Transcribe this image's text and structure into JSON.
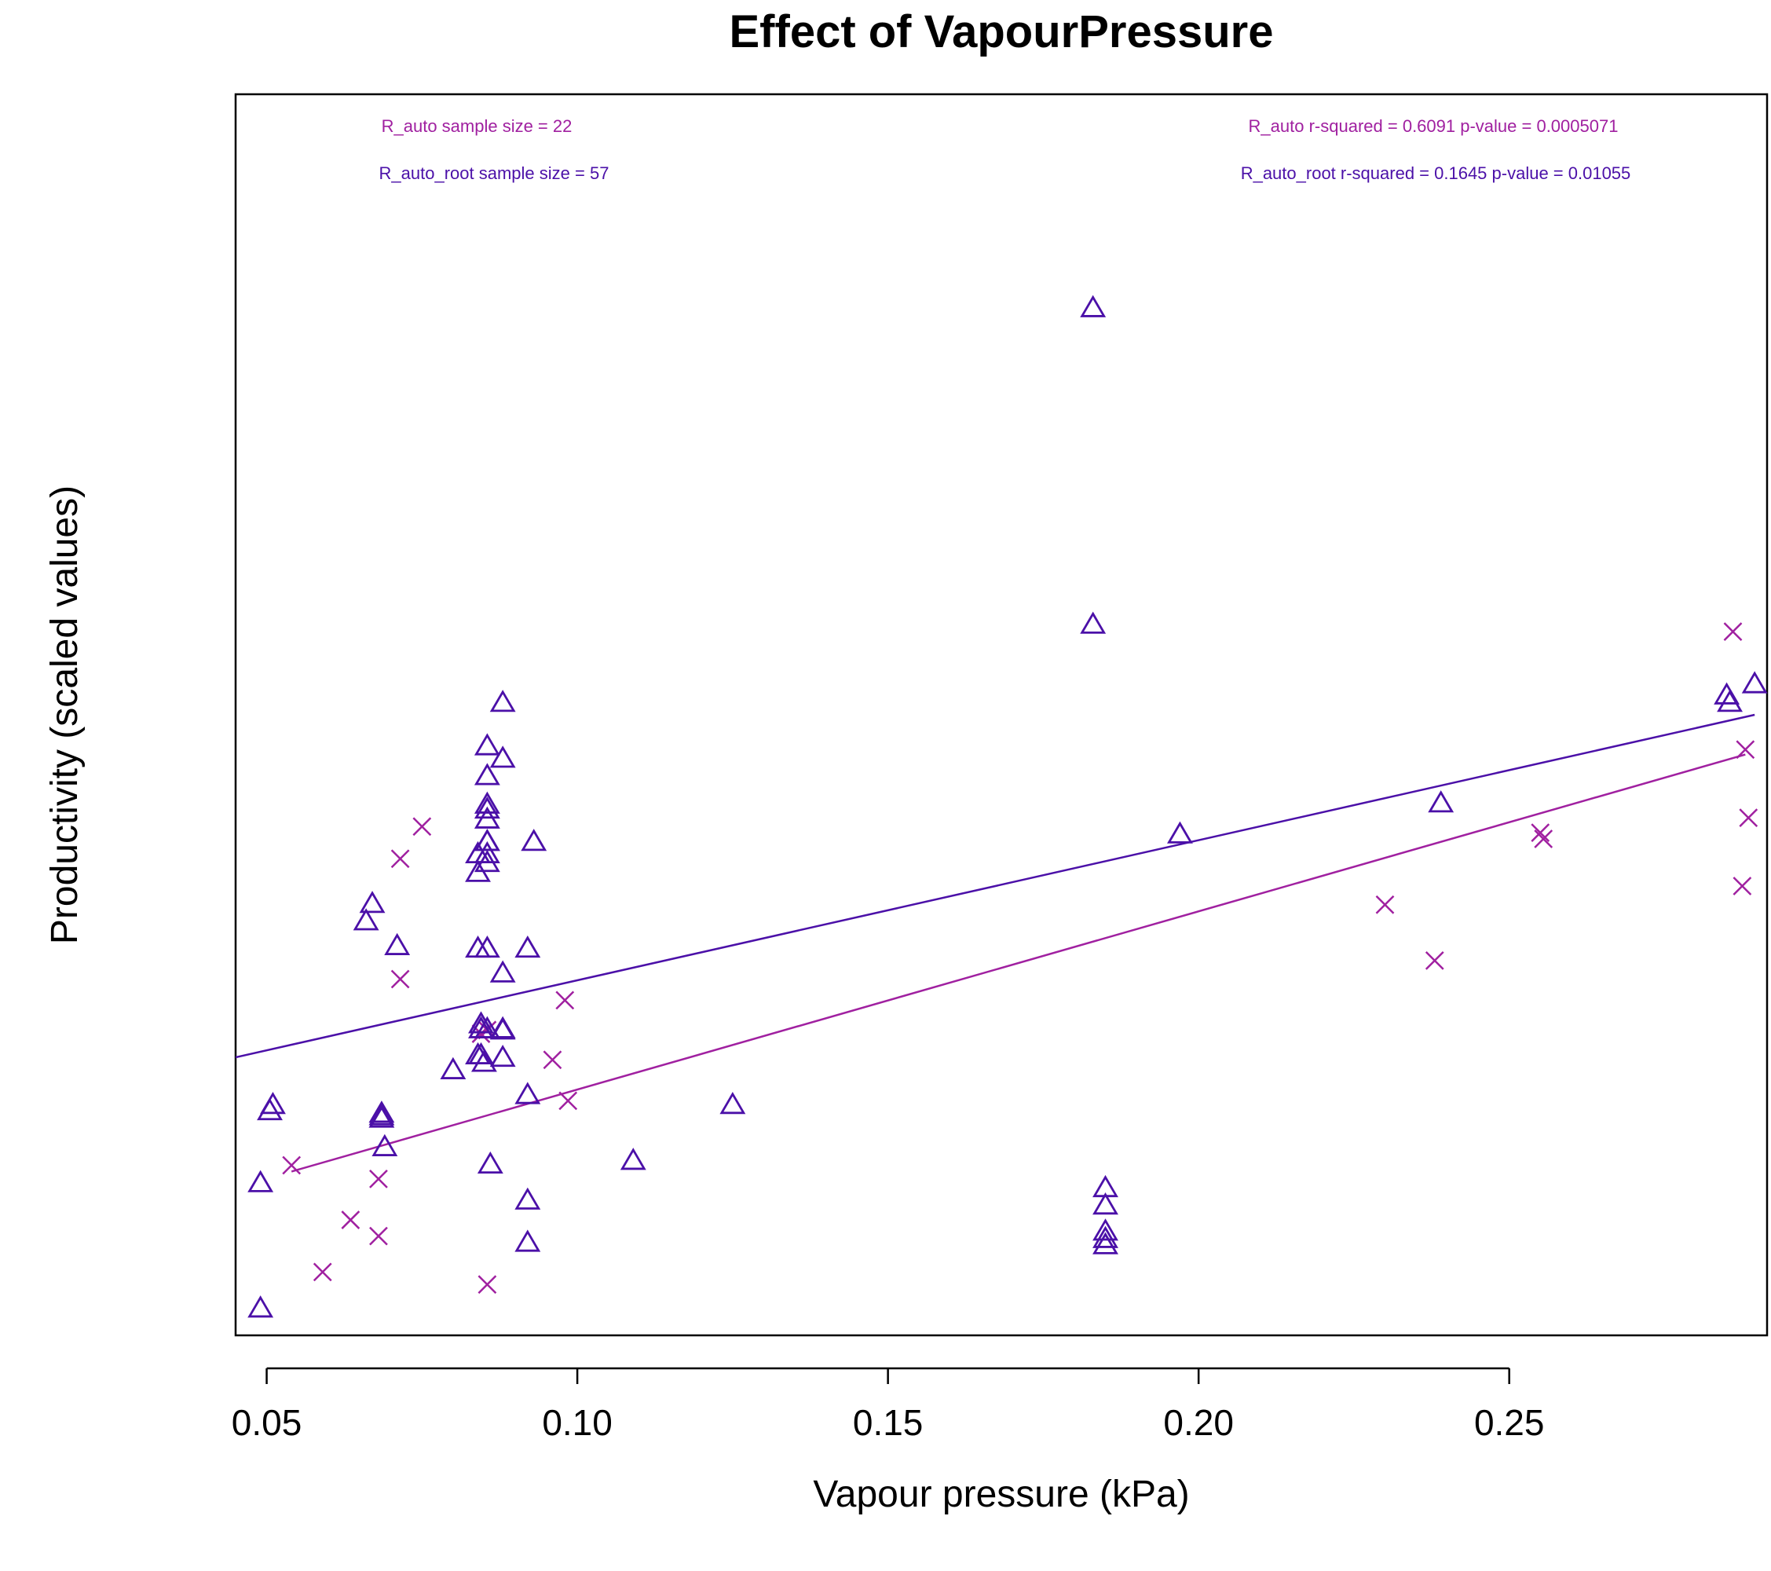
{
  "colors": {
    "R_auto": "#A020A0",
    "R_auto_root": "#4B10A8",
    "axis": "#000000"
  },
  "chart_data": {
    "type": "scatter",
    "title": "Effect of VapourPressure",
    "xlabel": "Vapour pressure (kPa)",
    "ylabel": "Productivity (scaled values)",
    "xlim": [
      0.045,
      0.2915
    ],
    "ylim": [
      0,
      1
    ],
    "x_ticks": [
      "0.05",
      "0.10",
      "0.15",
      "0.20",
      "0.25"
    ],
    "x_tick_values": [
      0.05,
      0.1,
      0.15,
      0.2,
      0.25
    ],
    "y_ticks": [],
    "grid": false,
    "annotations": {
      "R_auto_n": "R_auto sample size = 22",
      "R_auto_root_n": "R_auto_root sample size = 57",
      "R_auto_stats": "R_auto r-squared =  0.6091 p-value =  0.0005071",
      "R_auto_root_stats": "R_auto_root r-squared =  0.1645 p-value =  0.01055"
    },
    "series": [
      {
        "name": "R_auto",
        "marker": "x",
        "color": "#A020A0",
        "fit": [
          [
            0.054,
            0.132
          ],
          [
            0.288,
            0.468
          ]
        ],
        "points": [
          [
            0.054,
            0.137
          ],
          [
            0.059,
            0.051
          ],
          [
            0.0635,
            0.093
          ],
          [
            0.068,
            0.126
          ],
          [
            0.068,
            0.08
          ],
          [
            0.0715,
            0.384
          ],
          [
            0.0715,
            0.287
          ],
          [
            0.075,
            0.41
          ],
          [
            0.0855,
            0.041
          ],
          [
            0.096,
            0.222
          ],
          [
            0.098,
            0.27
          ],
          [
            0.0985,
            0.189
          ],
          [
            0.23,
            0.347
          ],
          [
            0.238,
            0.302
          ],
          [
            0.255,
            0.405
          ],
          [
            0.2555,
            0.4
          ],
          [
            0.286,
            0.567
          ],
          [
            0.288,
            0.472
          ],
          [
            0.2875,
            0.362
          ],
          [
            0.2885,
            0.417
          ],
          [
            0.0845,
            0.243
          ],
          [
            0.0855,
            0.246
          ]
        ]
      },
      {
        "name": "R_auto_root",
        "marker": "triangle",
        "color": "#4B10A8",
        "fit": [
          [
            0.045,
            0.224
          ],
          [
            0.2895,
            0.5
          ]
        ],
        "points": [
          [
            0.049,
            0.021
          ],
          [
            0.049,
            0.122
          ],
          [
            0.0505,
            0.18
          ],
          [
            0.051,
            0.185
          ],
          [
            0.066,
            0.333
          ],
          [
            0.067,
            0.347
          ],
          [
            0.0685,
            0.174
          ],
          [
            0.0685,
            0.178
          ],
          [
            0.069,
            0.151
          ],
          [
            0.071,
            0.313
          ],
          [
            0.08,
            0.213
          ],
          [
            0.084,
            0.372
          ],
          [
            0.084,
            0.387
          ],
          [
            0.084,
            0.311
          ],
          [
            0.0845,
            0.25
          ],
          [
            0.0845,
            0.246
          ],
          [
            0.084,
            0.225
          ],
          [
            0.085,
            0.219
          ],
          [
            0.0855,
            0.474
          ],
          [
            0.0855,
            0.45
          ],
          [
            0.0855,
            0.427
          ],
          [
            0.0855,
            0.423
          ],
          [
            0.0855,
            0.415
          ],
          [
            0.0855,
            0.397
          ],
          [
            0.0855,
            0.387
          ],
          [
            0.0855,
            0.38
          ],
          [
            0.0855,
            0.311
          ],
          [
            0.0855,
            0.246
          ],
          [
            0.086,
            0.137
          ],
          [
            0.088,
            0.509
          ],
          [
            0.088,
            0.464
          ],
          [
            0.088,
            0.291
          ],
          [
            0.088,
            0.245
          ],
          [
            0.088,
            0.223
          ],
          [
            0.092,
            0.311
          ],
          [
            0.092,
            0.193
          ],
          [
            0.092,
            0.108
          ],
          [
            0.092,
            0.074
          ],
          [
            0.093,
            0.397
          ],
          [
            0.109,
            0.14
          ],
          [
            0.125,
            0.185
          ],
          [
            0.183,
            0.827
          ],
          [
            0.183,
            0.572
          ],
          [
            0.185,
            0.118
          ],
          [
            0.185,
            0.104
          ],
          [
            0.185,
            0.083
          ],
          [
            0.185,
            0.077
          ],
          [
            0.185,
            0.072
          ],
          [
            0.197,
            0.403
          ],
          [
            0.239,
            0.428
          ],
          [
            0.285,
            0.515
          ],
          [
            0.2855,
            0.509
          ],
          [
            0.2895,
            0.524
          ],
          [
            0.0855,
            0.397
          ],
          [
            0.0845,
            0.225
          ],
          [
            0.088,
            0.246
          ],
          [
            0.0685,
            0.176
          ]
        ]
      }
    ]
  }
}
